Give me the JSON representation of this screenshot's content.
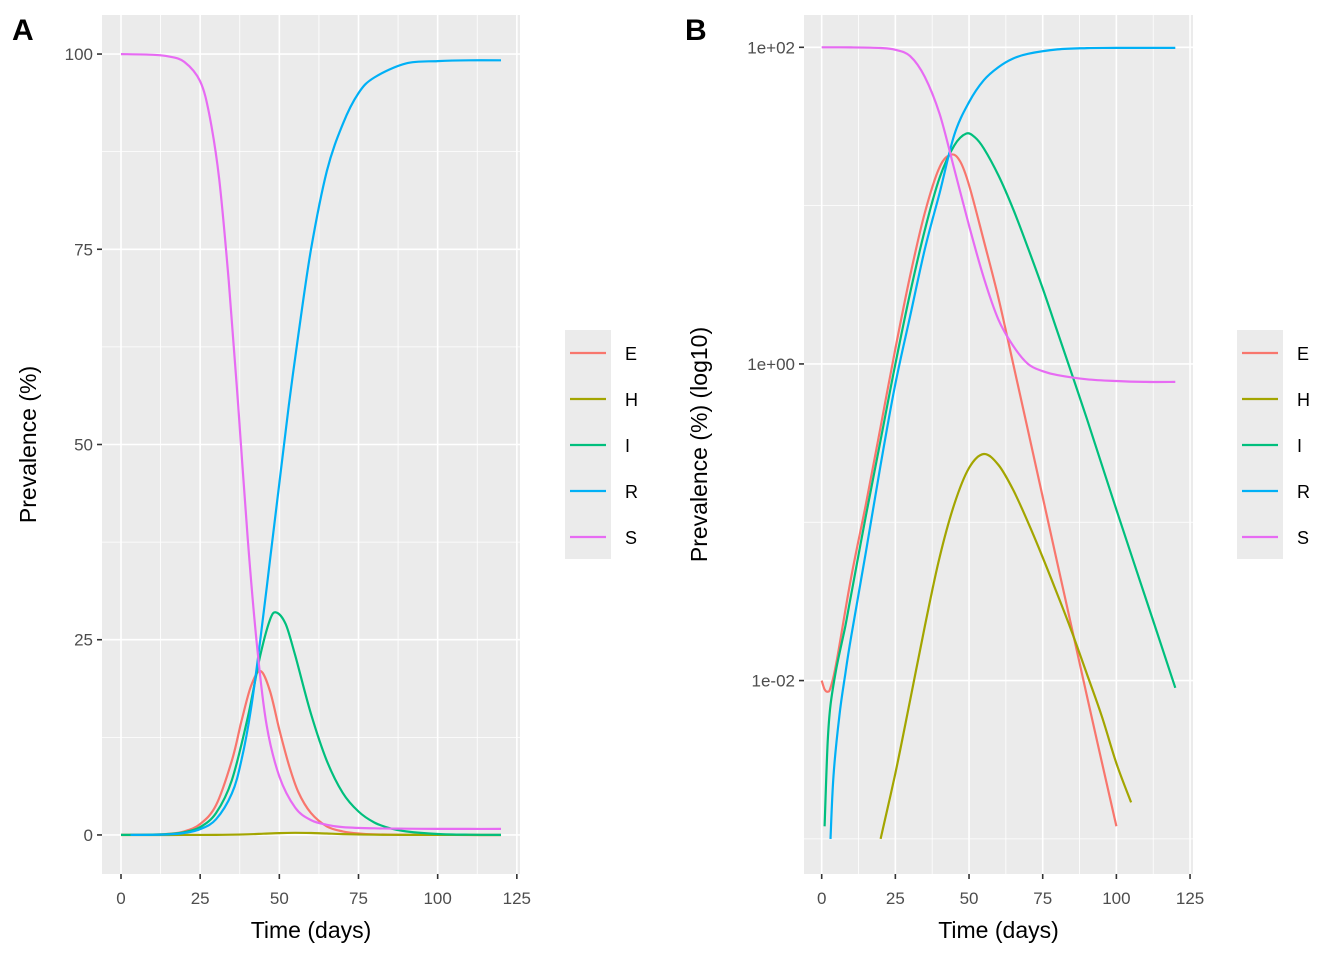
{
  "chart_data": [
    {
      "type": "line",
      "panel_label": "A",
      "title": "",
      "xlabel": "Time (days)",
      "ylabel": "Prevalence (%)",
      "xlim": [
        -6,
        126
      ],
      "ylim": [
        -5,
        105
      ],
      "yscale": "linear",
      "xticks": [
        0,
        25,
        50,
        75,
        100,
        125
      ],
      "xtick_labels": [
        "0",
        "25",
        "50",
        "75",
        "100",
        "125"
      ],
      "yticks": [
        0,
        25,
        50,
        75,
        100
      ],
      "ytick_labels": [
        "0",
        "25",
        "50",
        "75",
        "100"
      ],
      "grid": true,
      "legend_position": "right",
      "series": [
        {
          "name": "E",
          "color": "#F8766D",
          "x": [
            0,
            10,
            15,
            20,
            25,
            30,
            35,
            38,
            41,
            44,
            47,
            50,
            53,
            56,
            60,
            65,
            70,
            75,
            80,
            90,
            100,
            110,
            120
          ],
          "y": [
            0.01,
            0.05,
            0.15,
            0.45,
            1.4,
            3.8,
            9.5,
            14.5,
            19,
            21,
            18.5,
            13.5,
            9,
            5.5,
            2.8,
            1.1,
            0.45,
            0.18,
            0.07,
            0.01,
            0.002,
            0.0005,
            0.0001
          ]
        },
        {
          "name": "H",
          "color": "#A3A500",
          "x": [
            0,
            10,
            20,
            30,
            40,
            45,
            50,
            55,
            60,
            65,
            70,
            80,
            90,
            100,
            110,
            120
          ],
          "y": [
            0,
            0.0001,
            0.001,
            0.01,
            0.08,
            0.16,
            0.24,
            0.28,
            0.25,
            0.18,
            0.11,
            0.035,
            0.01,
            0.003,
            0.001,
            0.0003
          ]
        },
        {
          "name": "I",
          "color": "#00BF7D",
          "x": [
            0,
            10,
            15,
            20,
            25,
            30,
            35,
            40,
            44,
            47,
            49,
            52,
            55,
            60,
            65,
            70,
            75,
            80,
            85,
            90,
            100,
            110,
            120
          ],
          "y": [
            0.001,
            0.04,
            0.12,
            0.35,
            1.0,
            2.8,
            7.0,
            15,
            23,
            27.5,
            28.5,
            27,
            23,
            15.5,
            9.5,
            5.4,
            3.0,
            1.6,
            0.85,
            0.45,
            0.12,
            0.033,
            0.009
          ]
        },
        {
          "name": "R",
          "color": "#00B0F6",
          "x": [
            3,
            10,
            15,
            20,
            25,
            30,
            35,
            38,
            41,
            44,
            47,
            50,
            53,
            56,
            60,
            65,
            70,
            75,
            80,
            90,
            100,
            110,
            120
          ],
          "y": [
            0.001,
            0.02,
            0.07,
            0.25,
            0.75,
            2.0,
            5.3,
            9.5,
            16,
            25,
            35,
            45,
            55,
            64,
            75,
            85,
            91,
            95,
            97,
            98.8,
            99.1,
            99.2,
            99.2
          ]
        },
        {
          "name": "S",
          "color": "#E76BF3",
          "x": [
            0,
            10,
            15,
            20,
            25,
            28,
            31,
            34,
            37,
            40,
            43,
            46,
            50,
            55,
            60,
            65,
            70,
            80,
            90,
            100,
            110,
            120
          ],
          "y": [
            99.99,
            99.9,
            99.7,
            99.0,
            96.5,
            92,
            84,
            71,
            55,
            38,
            24,
            14,
            7.5,
            3.5,
            1.9,
            1.3,
            1.0,
            0.85,
            0.8,
            0.78,
            0.77,
            0.77
          ]
        }
      ]
    },
    {
      "type": "line",
      "panel_label": "B",
      "title": "",
      "xlabel": "Time (days)",
      "ylabel": "Prevalence (%) (log10)",
      "xlim": [
        -6,
        126
      ],
      "ylim": [
        0.0006,
        160
      ],
      "yscale": "log10",
      "xticks": [
        0,
        25,
        50,
        75,
        100,
        125
      ],
      "xtick_labels": [
        "0",
        "25",
        "50",
        "75",
        "100",
        "125"
      ],
      "yticks": [
        0.01,
        1,
        100
      ],
      "ytick_labels": [
        "1e-02",
        "1e+00",
        "1e+02"
      ],
      "minor_yticks": [
        0.001,
        0.1,
        10
      ],
      "grid": true,
      "legend_position": "right",
      "series": [
        {
          "name": "E",
          "color": "#F8766D",
          "x": [
            0,
            1,
            2,
            3,
            5,
            10,
            15,
            20,
            25,
            30,
            35,
            40,
            44,
            47,
            50,
            55,
            60,
            65,
            70,
            80,
            90,
            100,
            105,
            110,
            113
          ],
          "y": [
            0.01,
            0.0088,
            0.0085,
            0.009,
            0.013,
            0.045,
            0.13,
            0.4,
            1.25,
            3.6,
            9,
            17.5,
            21,
            19,
            13.5,
            6,
            2.6,
            1.0,
            0.38,
            0.055,
            0.008,
            0.0012,
            0.00045,
            0.00017,
            0.0001
          ]
        },
        {
          "name": "H",
          "color": "#A3A500",
          "x": [
            20,
            25,
            30,
            35,
            40,
            45,
            50,
            55,
            60,
            65,
            70,
            75,
            80,
            85,
            90,
            95,
            100,
            105,
            110,
            114
          ],
          "y": [
            0.001,
            0.0026,
            0.0075,
            0.022,
            0.06,
            0.13,
            0.22,
            0.27,
            0.23,
            0.16,
            0.1,
            0.06,
            0.035,
            0.02,
            0.011,
            0.006,
            0.003,
            0.0017,
            0.0009,
            0.0006
          ]
        },
        {
          "name": "I",
          "color": "#00BF7D",
          "x": [
            1,
            2,
            3,
            5,
            8,
            10,
            15,
            20,
            25,
            30,
            35,
            40,
            45,
            49,
            52,
            55,
            60,
            65,
            70,
            75,
            80,
            85,
            90,
            100,
            110,
            120
          ],
          "y": [
            0.0012,
            0.004,
            0.007,
            0.012,
            0.022,
            0.035,
            0.11,
            0.33,
            1.0,
            2.8,
            7,
            15,
            24,
            28.5,
            27,
            23,
            15.5,
            9.5,
            5.4,
            3.0,
            1.6,
            0.85,
            0.45,
            0.12,
            0.033,
            0.009
          ]
        },
        {
          "name": "R",
          "color": "#00B0F6",
          "x": [
            3,
            4,
            6,
            8,
            10,
            15,
            20,
            25,
            30,
            35,
            40,
            45,
            50,
            55,
            60,
            65,
            70,
            80,
            90,
            100,
            120
          ],
          "y": [
            0.001,
            0.0025,
            0.006,
            0.011,
            0.019,
            0.065,
            0.23,
            0.75,
            2.0,
            5.3,
            12,
            28,
            45,
            62,
            75,
            85,
            91,
            97,
            98.8,
            99.1,
            99.2
          ]
        },
        {
          "name": "S",
          "color": "#E76BF3",
          "x": [
            0,
            10,
            20,
            25,
            30,
            35,
            40,
            45,
            50,
            55,
            60,
            65,
            70,
            75,
            80,
            90,
            100,
            110,
            120
          ],
          "y": [
            99.99,
            99.9,
            99,
            96.5,
            88,
            65,
            38,
            17,
            7.5,
            3.5,
            1.9,
            1.3,
            1.0,
            0.9,
            0.85,
            0.8,
            0.78,
            0.77,
            0.77
          ]
        }
      ]
    }
  ],
  "legend": {
    "items": [
      {
        "label": "E",
        "color": "#F8766D"
      },
      {
        "label": "H",
        "color": "#A3A500"
      },
      {
        "label": "I",
        "color": "#00BF7D"
      },
      {
        "label": "R",
        "color": "#00B0F6"
      },
      {
        "label": "S",
        "color": "#E76BF3"
      }
    ]
  }
}
